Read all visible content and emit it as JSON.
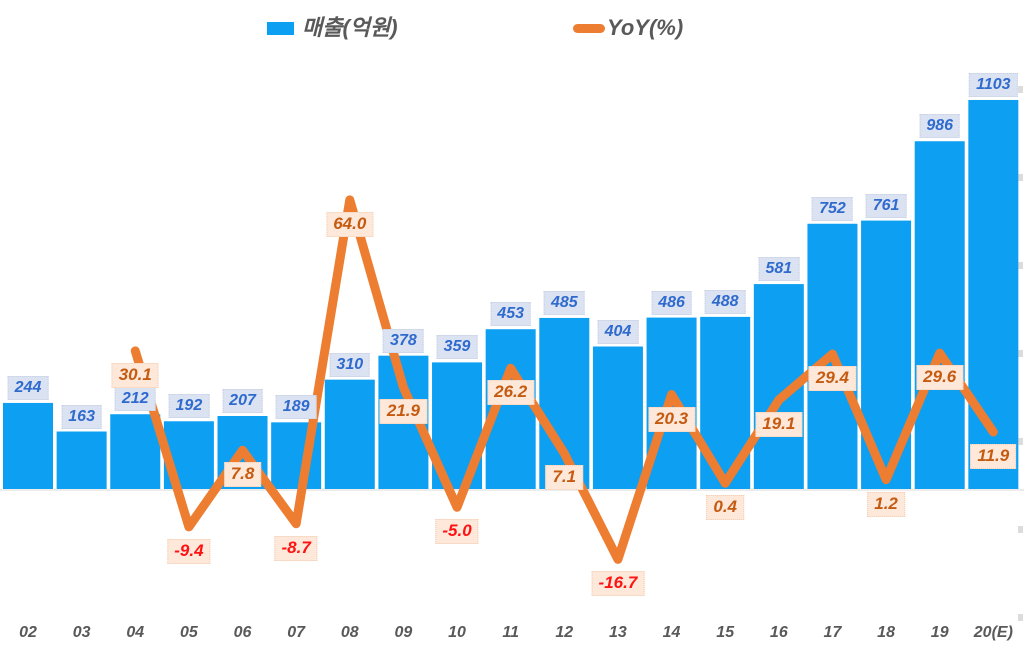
{
  "legend": {
    "revenue_label": "매출(억원)",
    "yoy_label": "YoY(%)"
  },
  "colors": {
    "bar": "#0c9ff2",
    "bar_label_text": "#2f6bce",
    "bar_label_bg": "#dbe2f1",
    "line": "#ed7d31",
    "yoy_label_text_positive": "#c55a11",
    "yoy_label_text_negative": "#ff1212",
    "yoy_label_bg": "#fde8da",
    "axis_text": "#595959",
    "baseline": "#d9d9d9"
  },
  "chart_data": {
    "type": "bar",
    "subtype": "combo-bar-line",
    "categories": [
      "02",
      "03",
      "04",
      "05",
      "06",
      "07",
      "08",
      "09",
      "10",
      "11",
      "12",
      "13",
      "14",
      "15",
      "16",
      "17",
      "18",
      "19",
      "20(E)"
    ],
    "series": [
      {
        "name": "매출(억원)",
        "type": "bar",
        "values": [
          244,
          163,
          212,
          192,
          207,
          189,
          310,
          378,
          359,
          453,
          485,
          404,
          486,
          488,
          581,
          752,
          761,
          986,
          1103
        ]
      },
      {
        "name": "YoY(%)",
        "type": "line",
        "values": [
          null,
          null,
          30.1,
          -9.4,
          7.8,
          -8.7,
          64.0,
          21.9,
          -5.0,
          26.2,
          7.1,
          -16.7,
          20.3,
          0.4,
          19.1,
          29.4,
          1.2,
          29.6,
          11.9
        ]
      }
    ],
    "title": "",
    "xlabel": "",
    "ylabel": "",
    "legend_position": "top",
    "grid": false,
    "data_labels": "all points labeled; bar labels boxed light blue, YoY labels boxed light peach, negative YoY in red"
  }
}
